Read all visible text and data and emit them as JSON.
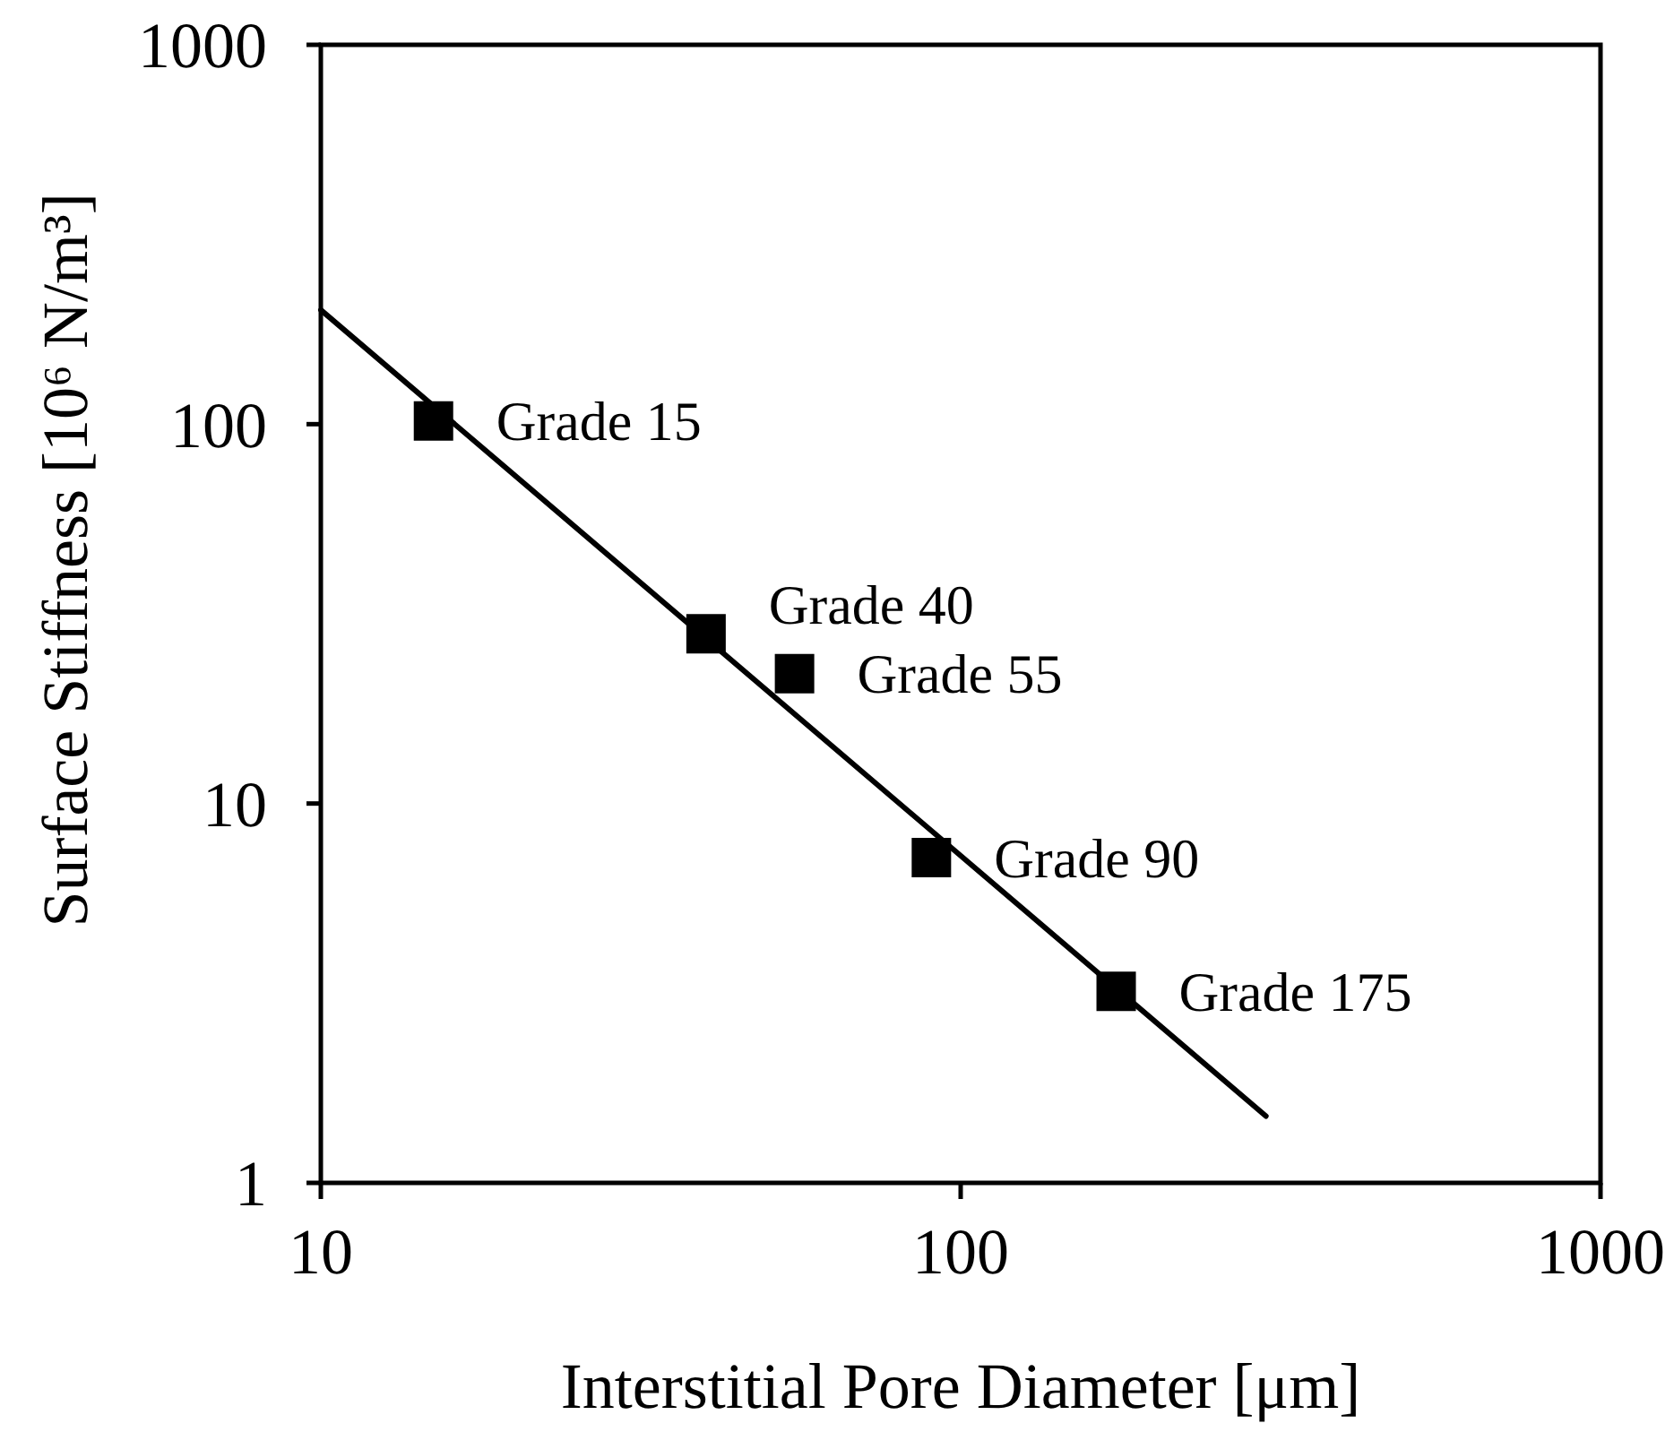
{
  "chart_data": {
    "type": "scatter",
    "xlabel": "Interstitial Pore Diameter [μm]",
    "ylabel": "Surface Stiffness [10⁶ N/m³]",
    "log": "xy",
    "xlim": [
      10,
      1000
    ],
    "ylim": [
      1,
      1000
    ],
    "xticks": [
      10,
      100,
      1000
    ],
    "yticks": [
      1,
      10,
      100,
      1000
    ],
    "series": [
      {
        "color": "#000000",
        "marker": "square",
        "x": [
          15,
          40,
          55,
          90,
          175
        ],
        "values": [
          102,
          28,
          22,
          7.2,
          3.2
        ]
      },
      {
        "type": "line",
        "color": "#000000",
        "marker": "none",
        "line_style": "solid",
        "x": [
          10,
          300
        ],
        "values": [
          200,
          1.5
        ]
      }
    ],
    "annotations": [
      {
        "text": "Grade 15",
        "x": 15,
        "y": 102
      },
      {
        "text": "Grade 40",
        "x": 40,
        "y": 28
      },
      {
        "text": "Grade 55",
        "x": 55,
        "y": 22
      },
      {
        "text": "Grade 90",
        "x": 90,
        "y": 7.2
      },
      {
        "text": "Grade 175",
        "x": 175,
        "y": 3.2
      }
    ]
  }
}
